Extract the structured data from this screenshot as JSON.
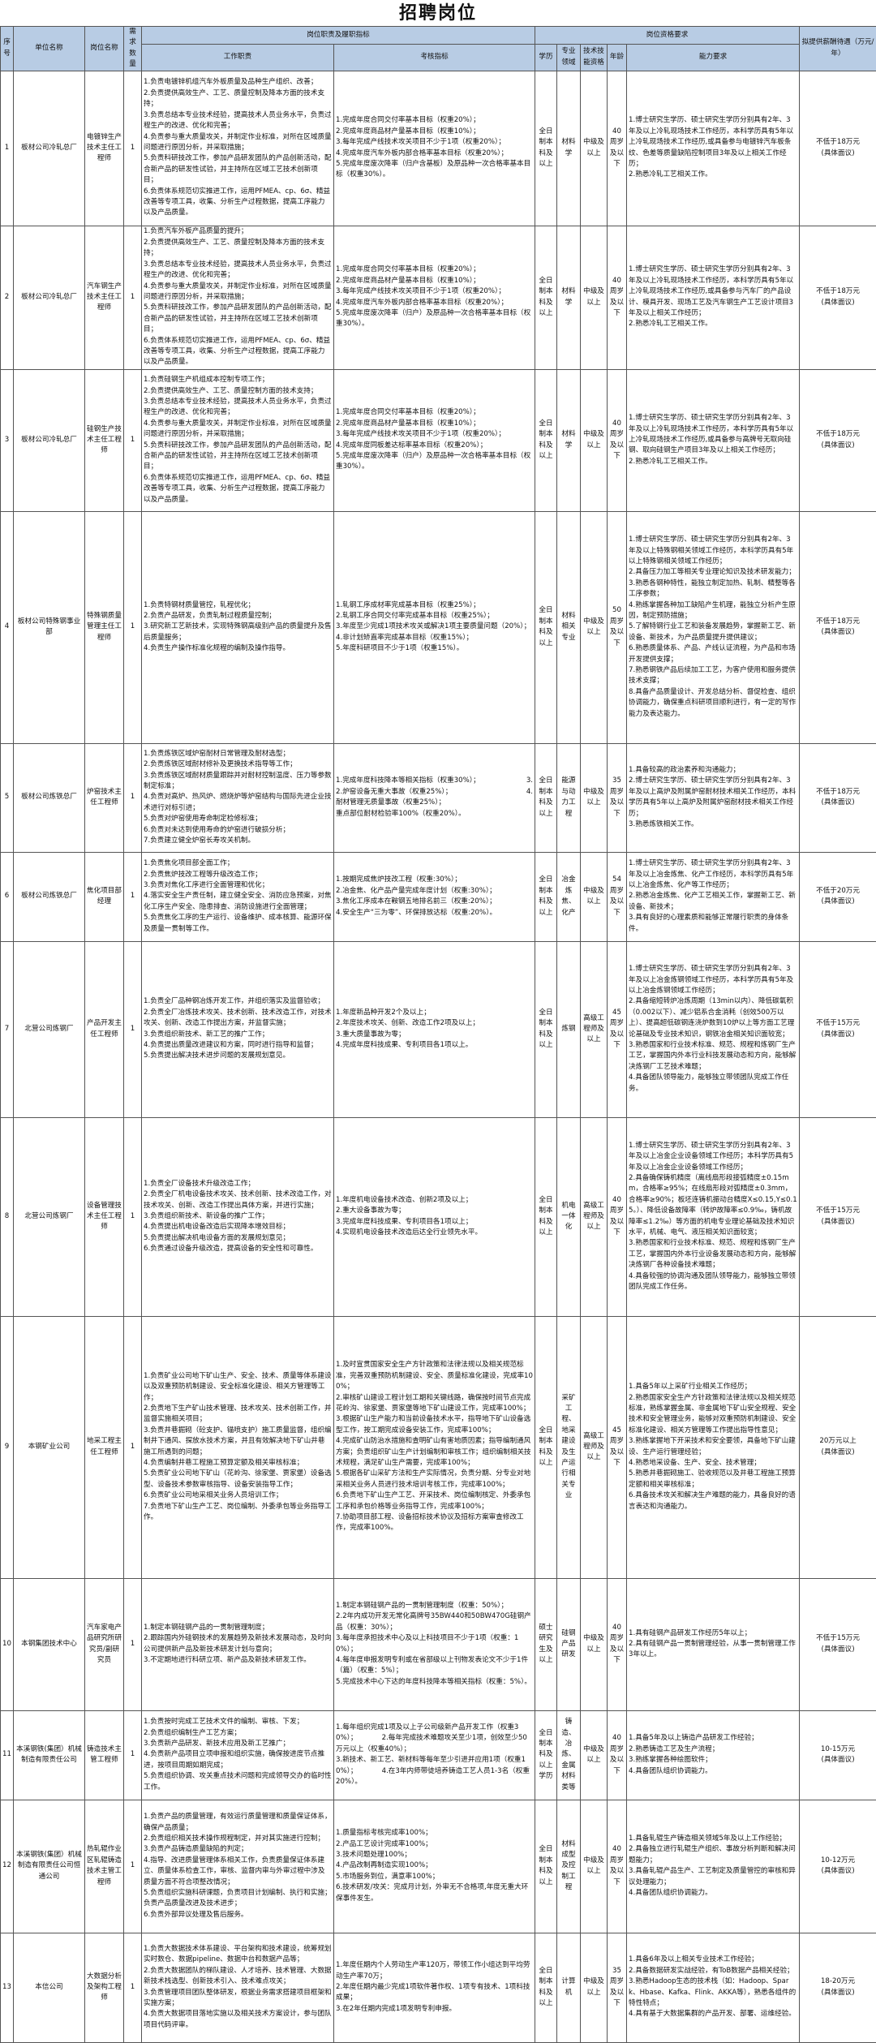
{
  "title": "招聘岗位",
  "header": {
    "seq": "序号",
    "unit": "单位名称",
    "position": "岗位名称",
    "count": "需求数量",
    "duties_group": "岗位职责及履职指标",
    "duties": "工作职责",
    "indicators": "考核指标",
    "qual_group": "岗位资格要求",
    "education": "学历",
    "major": "专业领域",
    "skill": "技术技能资格",
    "age": "年龄",
    "ability": "能力要求",
    "salary": "拟提供薪酬待遇（万元/年）"
  },
  "colors": {
    "header_bg": "#b8cce4",
    "border": "#555555"
  },
  "rows": [
    {
      "seq": "1",
      "unit": "板材公司冷轧总厂",
      "position": "电镀锌生产技术主任工程师",
      "count": "1",
      "duties": "1.负责电镀锌机组汽车外板质量及品种生产组织、改善；\n2.负责提供高效生产、工艺、质量控制及降本方面的技术支持；\n3.负责总结本专业技术经验，提高技术人员业务水平，负责过程生产的改进、优化和完善；\n4.负责参与重大质量攻关，并制定作业标准，对所在区域质量问题进行原因分析，并采取措施；\n5.负责科研技改工作，参加产品研发团队的产品创新活动，配合新产品的研发性试验，并主持所在区域工艺技术创新项目；\n6.负责体系规范切实推进工作，运用PFMEA、cp、6σ、精益改善等专项工具，收集、分析生产过程数据，提高工序能力以及产品质量。",
      "indicators": "1.完成年度合同交付率基本目标（权重20%）；\n2.完成年度商品材产量基本目标（权重10%）；\n3.每年完成产线技术攻关项目不少于1项（权重20%）；\n4.完成年度汽车外板内部合格率基本目标（权重20%）；\n5.完成年度废次降率（归户含基板）及原品种一次合格率基本目标（权重30%）。",
      "education": "全日制本科及以上",
      "major": "材料学",
      "skill": "中级及以上",
      "age": "40周岁及以下",
      "ability": "1.博士研究生学历、硕士研究生学历分别具有2年、3年及以上冷轧现场技术工作经历，本科学历具有5年以上冷轧现场技术工作经历,或具备参与电镀锌汽车板条纹、色差等质量缺陷控制项目3年及以上相关工作经历；\n2.熟悉冷轧工艺相关工作。",
      "salary": "不低于18万元\n(具体面议)"
    },
    {
      "seq": "2",
      "unit": "板材公司冷轧总厂",
      "position": "汽车钢生产技术主任工程师",
      "count": "1",
      "duties": "1.负责汽车外板产品质量的提升；\n2.负责提供高效生产、工艺、质量控制及降本方面的技术支持；\n3.负责总结本专业技术经验，提高技术人员业务水平，负责过程生产的改进、优化和完善；\n4.负责参与重大质量攻关，并制定作业标准，对所在区域质量问题进行原因分析，并采取措施；\n5.负责科研技改工作，参加产品研发团队的产品创新活动，配合新产品的研发性试验，并主持所在区域工艺技术创新项目；\n6.负责体系规范切实推进工作，运用PFMEA、cp、6σ、精益改善等专项工具，收集、分析生产过程数据，提高工序能力以及产品质量。",
      "indicators": "1.完成年度合同交付率基本目标（权重20%）；\n2.完成年度商品材产量基本目标（权重10%）；\n3.每年完成产线技术攻关项目不少于1项（权重20%）；\n4.完成年度汽车外板内部合格率基本目标（权重20%）；\n5.完成年度废次降率（归户）及原品种一次合格率基本目标（权重30%）。",
      "education": "全日制本科及以上",
      "major": "材料学",
      "skill": "中级及以上",
      "age": "40周岁及以下",
      "ability": "1.博士研究生学历、硕士研究生学历分别具有2年、3年及以上冷轧现场技术工作经历，本科学历具有5年以上冷轧现场技术工作经历,或具备参与汽车厂的产品设计、模具开发、现场工艺及汽车钢生产工艺设计项目3年及以上相关工作经历；\n2.熟悉冷轧工艺相关工作。",
      "salary": "不低于18万元\n(具体面议)"
    },
    {
      "seq": "3",
      "unit": "板材公司冷轧总厂",
      "position": "硅钢生产技术主任工程师",
      "count": "1",
      "duties": "1.负责硅钢生产机组成本控制专项工作；\n2.负责提供高效生产、工艺、质量控制方面的技术支持；\n3.负责总结本专业技术经验，提高技术人员业务水平，负责过程生产的改进、优化和完善；\n4.负责参与重大质量攻关，并制定作业标准，对所在区域质量问题进行原因分析，并采取措施；\n5.负责科研技改工作，参加产品研发团队的产品创新活动，配合新产品的研发性试验，并主持所在区域工艺技术创新项目；\n6.负责体系规范切实推进工作，运用PFMEA、cp、6σ、精益改善等专项工具，收集、分析生产过程数据，提高工序能力以及产品质量。",
      "indicators": "1.完成年度合同交付率基本目标（权重20%）；\n2.完成年度商品材产量基本目标（权重10%）；\n3.每年完成产线技术攻关项目不少于1项（权重20%）；\n4.完成年度同板差达标率基本目标（权重20%）；\n5.完成年度废次降率（归户）及原品种一次合格率基本目标（权重30%）。",
      "education": "全日制本科及以上",
      "major": "材料学",
      "skill": "中级及以上",
      "age": "40周岁及以下",
      "ability": "1.博士研究生学历、硕士研究生学历分别具有2年、3年及以上冷轧现场技术工作经历，本科学历具有5年以上冷轧现场技术工作经历,或具备参与高牌号无取向硅钢、取向硅钢生产项目3年及以上相关工作经历；\n2.熟悉冷轧工艺相关工作。",
      "salary": "不低于18万元\n(具体面议)"
    },
    {
      "seq": "4",
      "unit": "板材公司特殊钢事业部",
      "position": "特殊钢质量管理主任工程师",
      "count": "1",
      "duties": "1.负责特钢材质量管控，轧程优化；\n2.负责产品研发，负责轧制过程质量控制；\n3.研究新工艺新技术，实现特殊钢高级别产品的质量提升及售后质量服务；\n4.负责生产操作标准化规程的编制及操作指导。",
      "indicators": "1.轧钢工序成材率完成基本目标（权重25%）；\n2.轧钢工序合同交付率完成基本目标（权重25%）；\n3.年度至少完成1项技术攻关或解决1项主要质量问题（20%）；\n4.非计划矫直率完成基本目标（权重15%）；\n5.年度科研项目不少于1项（权重15%）。",
      "education": "全日制本科及以上",
      "major": "材料相关专业",
      "skill": "中级及以上",
      "age": "50周岁及以下",
      "ability": "1.博士研究生学历、硕士研究生学历分别具有2年、3年及以上特殊钢相关领域工作经历，本科学历具有5年以上特殊钢相关领域工作经历；\n2.具备压力加工等相关专业理论知识及技术研发能力；\n3.熟悉各钢种特性，能独立制定加热、轧制、精整等各工序参数；\n4.熟练掌握各种加工缺陷产生机理，能独立分析产生原因，制定预防措施；\n5.了解特钢行业工艺和装备发展趋势，掌握新工艺、新设备、新技术，为产品质量提升提供建议；\n6.熟悉质量体系、产品、产线认证流程，为产品和市场开发提供支撑；\n7.熟悉钢铁产品后续加工工艺，为客户使用和服务提供技术支撑；\n8.具备产品质量设计、开发总结分析、督促检查、组织协调能力，确保重点科研项目顺利进行，有一定的写作能力及表达能力。",
      "salary": "不低于18万元\n(具体面议)"
    },
    {
      "seq": "5",
      "unit": "板材公司炼铁总厂",
      "position": "炉窑技术主任工程师",
      "count": "1",
      "duties": "1.负责炼铁区域炉窑耐材日常管理及耐材选型；\n2.负责炼铁区域耐材修补及更换技术指导等工作；\n3.负责炼铁区域耐材质量跟踪并对耐材控制温度、压力等参数制定标准；\n4.负责对高炉、热风炉、燃烧炉等炉窑结构与国际先进企业技术进行对标引进；\n5.负责对炉窑使用寿命制定检修标准；\n6.负责对未达到使用寿命的炉窑进行破损分析；\n7.负责建立健全炉窑长寿攻关机制。",
      "indicators": "1.完成年度科技降本等相关指标（权重30%）；\n2.炉窑设备无重大事故（权重25%）；\n耐材管理无质量事故（权重25%）；\n重点部位耐材检验率100%（权重20%）。",
      "indicators_stray": "3.\n4.",
      "education": "全日制本科及以上",
      "major": "能源与动力工程",
      "skill": "中级及以上",
      "age": "35周岁及以下",
      "ability": "1.具备较高的政治素养和沟通能力；\n2.博士研究生学历、硕士研究生学历分别具有2年、3年及以上高炉及附属炉窑耐材技术相关工作经历，本科学历具有5年以上高炉及附属炉窑耐材技术相关工作经历；\n3.熟悉炼铁相关工作。",
      "salary": "不低于18万元\n(具体面议)"
    },
    {
      "seq": "6",
      "unit": "板材公司炼铁总厂",
      "position": "焦化项目部经理",
      "count": "1",
      "duties": "1.负责焦化项目部全面工作；\n2.负责焦炉技改工程等升级改造工作；\n3.负责对焦化工序进行全面管理和优化；\n4.落实安全生产责任制，建立健全安全、消防应急预案，对焦化工序生产安全、隐患排查、消防设施进行全面管理；\n5.负责焦化工序的生产运行、设备维护、成本核算、能源环保及质量一贯制等工作。",
      "indicators": "1.按期完成焦炉技改工程（权重:30%）；\n2.冶金焦、化产品产量完成年度计划（权重:30%）；\n3.焦化工序成本在鞍钢五地排名前三（权重:20%）；\n4.安全生产“三为零”、环保排放达标（权重:20%）。",
      "education": "全日制本科及以上",
      "major": "冶金炼焦、化产",
      "skill": "中级及以上",
      "age": "54周岁及以下",
      "ability": "1.博士研究生学历、硕士研究生学历分别具有2年、3年及以上冶金炼焦、化产工作经历，本科学历具有5年以上冶金炼焦、化产等工作经历；\n2.熟悉冶金炼焦、化产工艺相关工作，掌握新工艺、新设备、新技术；\n3.具有良好的心理素质和能够正常履行职责的身体条件。",
      "salary": "不低于20万元\n(具体面议)"
    },
    {
      "seq": "7",
      "unit": "北营公司炼钢厂",
      "position": "产品开发主任工程师",
      "count": "1",
      "duties": "1.负责全厂品种钢冶炼开发工作，并组织落实及监督验收；\n2.负责全厂冶炼技术攻关、技术创新、技术改造工作，对技术攻关、创新、改造工作提出方案，并监督实施；\n3.负责组织新技术、新工艺的推广工作；\n4.负责提出质量改进建议和方案，同时进行指导和监督；\n5.负责提出解决技术进步问题的发展规划意见。",
      "indicators": "1.年度新品种开发2个及以上；\n2.年度技术攻关、创新、改造工作2项及以上；\n3.重大质量事故为零；\n4.完成年度科技成果、专利项目各1项以上。",
      "education": "全日制本科及以上",
      "major": "炼钢",
      "skill": "高级工程师及以上",
      "age": "45周岁及以下",
      "ability": "1.博士研究生学历、硕士研究生学历分别具有2年、3年及以上冶金炼钢领域工作经历，本科学历具有5年及以上冶金炼钢领域工作经历；\n2.具备缩短转炉冶炼周期（13min以内）、降低碳氧积（0.002以下）、减少铝系合金消耗（创效500万以上）、提高超低碳钢连浇炉数到10炉以上等方面工艺理论基础及专业技术知识，钢铁冶金相关知识面较宽；\n3.熟悉国家和行业技术标准、规范、规程和炼钢厂生产工艺，掌握国内外本行业科技发展动态和方向，能够解决炼钢厂工艺技术难题；\n4.具备团队领导能力，能够独立带领团队完成工作任务。",
      "salary": "不低于15万元\n(具体面议)"
    },
    {
      "seq": "8",
      "unit": "北营公司炼钢厂",
      "position": "设备管理技术主任工程师",
      "count": "1",
      "duties": "1.负责全厂设备技术升级改造工作；\n2.负责全厂机电设备技术攻关、技术创新、技术改造工作，对技术攻关、创新、改造工作提出具体方案，并进行实施；\n3.负责组织新技术、新设备的推广工作；\n4.负责提出机电设备改造后实现降本增效目标；\n5.负责提出解决机电设备方面的发展规划意见；\n6.负责通过设备升级改造，提高设备的安全性和可靠性。",
      "indicators": "1.年度机电设备技术改造、创新2项及以上；\n2.重大设备事故为零；\n3.完成年度科技成果、专利项目各1项以上；\n4.实现机电设备技术改造后达全行业领先水平。",
      "education": "全日制本科及以上",
      "major": "机电一体化",
      "skill": "高级工程师及以上",
      "age": "40周岁及以下",
      "ability": "1.博士研究生学历、硕士研究生学历分别具有2年、3年及以上冶金企业设备领域工作经历；本科学历具有5年及以上冶金企业设备领域工作经历；\n2.具备确保铸机精度（离线扇形段接弧精度±0.15mm，合格率≥95%；在线扇形段对弧精度±0.3mm，合格率≥90%；板坯连铸机振动台精度X≤0.15,Y≤0.15。）、降低设备故障率（转炉故障率≤0.9‰，铸机故障率≤1.2‰）等方面的机电专业理论基础及技术知识水平，机械、电气、液压相关知识面较宽；\n3.熟悉国家和行业技术标准、规范、规程和炼钢厂生产工艺，掌握国内外本行业设备发展动态和方向，能够解决炼钢厂各种设备技术难题；\n4.具备较强的协调沟通及团队领导能力，能够独立带领团队完成工作任务。",
      "salary": "不低于15万元\n(具体面议)"
    },
    {
      "seq": "9",
      "unit": "本钢矿业公司",
      "position": "地采工程主任工程师",
      "count": "1",
      "duties": "1.负责矿业公司地下矿山生产、安全、技术、质量等体系建设以及双重预防机制建设、安全标准化建设、相关方管理等工作；\n2.负责地下生产矿山技术管理、技术攻关、技术创新工作，并监督实施相关项目；\n3.负责井巷掘砌（砼支护、锚喷支护）施工质量监督，组织编制井下通风、探放水技术方案，并且有效解决地下矿山井巷施工所遇到的问题；\n4.负责编制井巷工程施工预算定额及相关审核标准；\n5.负责矿业公司地下矿山（花岭沟、徐家堡、贾家堡）设备选型、设备技术参数审核指导、设备安装指导工作；\n6.负责矿业公司地采相关业务人员培训工作；\n7.负责地下矿山生产工艺、岗位编制、外委承包等业务指导工作。",
      "indicators": "1.及时宣贯国家安全生产方针政策和法律法规以及相关规范标准，完善双重预防机制建设、安全、质量标准化建设，完成率100%；\n2.审核矿山建设工程计划工期和关键线路，确保按时间节点完成花岭沟、徐家堡、贾家堡等地下矿山建设工作，完成率100%；\n3.根据矿山生产能力和当前设备技术水平，指导地下矿山设备选型工作，按工期完成设备安装工作，完成率100%；\n4.完成矿山防治水措施和查明矿山有害地质因素；指导编制通风方案；负责组织矿山生产计划编制和审核工作；组织编制相关技术规程，满足矿山生产需要，完成率100%；\n5.根据各矿山采矿方法和生产实际情况，负责分期、分专业对地采相关业务人员进行技术培训考核工作，完成率100%；\n6.负责地下矿山生产工艺、开采技术、岗位编制核定、外委承包工序和承包价格等业务指导工作，完成率100%；\n7.协助项目部工程、设备招标技术协议及招标方案审查修改工作，完成率100%。",
      "education": "全日制本科及以上",
      "major": "采矿工程、地采建设及生产运行相关专业",
      "skill": "高级工程师及以上",
      "age": "45周岁及以下",
      "ability": "1.具备5年以上采矿行业相关工作经历；\n2.熟悉国家安全生产方针政策和法律法规以及相关规范标准，熟练掌握金属、非金属地下矿山安全规程、安全技术和安全管理业务，能够对双重预防机制建设、安全标准化建设、相关方管理等工作提出指导性意见；\n3.熟练掌握地下开采技术和安全要领，具备地下矿山建设、生产运行管理经验；\n4.熟悉地采设备、生产、安全、技术管理；\n5.熟悉井巷掘砌施工、验收规范以及井巷工程施工预算定额和相关审核标准；\n6.具备技术攻关和解决生产难题的能力，具备良好的语言表达和沟通能力。",
      "salary": "20万元以上\n(具体面议)"
    },
    {
      "seq": "10",
      "unit": "本钢集团技术中心",
      "position": "汽车家电产品研究所研究员/副研究员",
      "count": "1",
      "duties": "1.制定本钢硅钢产品的一贯制管理制度；\n2.跟踪国内外硅钢技术的发展趋势及新技术发展动态，及时向公司提供新产品及新技术研发计划与意向；\n3.不定期地进行科研立项、新产品及新技术研发工作。",
      "indicators": "1.制定本钢硅钢产品的一贯制管理制度（权重：50%）；\n2.2年内成功开发无常化高牌号35BW440和50BW470G硅钢产品（权重：30%）；\n3.每年度承担技术中心及以上科技项目不少于1项（权重：10%）；\n4.每年度申报发明专利或在省部级以上刊物发表论文不少于1件（篇）（权重：5%）；\n5.完成技术中心下达的年度科技降本等相关指标（权重：5%）。",
      "education": "硕士研究生及以上",
      "major": "硅钢产品研发",
      "skill": "中级及以上",
      "age": "40周岁及以下",
      "ability": "1.具有硅钢产品研发工作经历5年以上；\n2.具有硅钢产品一贯制管理经验，从事一贯制管理工作3年以上。",
      "salary": "不低于15万元\n(具体面议)"
    },
    {
      "seq": "11",
      "unit": "本溪钢铁(集团）机械制造有限责任公司",
      "position": "铸造技术主管工程师",
      "count": "1",
      "duties": "1.负责按时完成工艺技术文件的编制、审核、下发；\n2.负责组织编制生产工艺方案；\n3.负责新产品研发、新技术应用及新工艺推广；\n4.负责新产品项目立项申报和组织实施，确保按进度节点推进，按项目周期如期完成；\n5.负责组织协调、攻关重点技术问题和完成领导交办的临时性工作。",
      "indicators": "1.每年组织完成1项及以上子公司级新产品开发工作（权重30%）；　　　　2.每年完成技术难题攻关至少1项，创效至少50万元以上（权重40%）；\n3.新技术、新工艺、新材料等每年至少引进并应用1项（权重10%）；　　　　4.在3年内师带徒培养铸造工艺人员1-3名（权重20%）。",
      "education": "全日制本科及以上学历",
      "major": "铸造、冶炼、金属材料类等",
      "skill": "中级及以上",
      "age": "40周岁及以下",
      "ability": "1.具备5年及以上铸造产品研发工作经验；\n2.熟悉铸造工艺及生产流程；\n3.熟练掌握各种绘图软件；\n4.具备团队组织协调能力。",
      "salary": "10-15万元\n(具体面议)"
    },
    {
      "seq": "12",
      "unit": "本溪钢铁(集团）机械制造有限责任公司恒通公司",
      "position": "热轧辊作业区轧辊铸造技术主管工程师",
      "count": "1",
      "duties": "1.负责产品的质量管理，有效运行质量管理和质量保证体系，确保产品质量；\n2.负责组织相关技术操作规程制定，并对其实施进行控制；\n3.负责产品铸造质量缺陷的判定；\n4.指导、改进质量管理体系相关工作，负责质量保证体系建立、质量体系检查工作，审核、监督内审与外审过程中涉及质量方面不符合项整改情况；\n5.负责组织实施科研课题，负责项目计划编制、执行和实施；负责产品质量改进及技术进步；\n6.负责外部异议处理及售后服务。",
      "indicators": "1.质量指标考核完成率100%；\n2.产品工艺设计完成率100%；\n3.技术问题处理100%；\n4.产品改制再制造实现100%；\n5.市场服务到位，满意率100%；\n6.技术研发/攻关：完成月计划，外审无不合格项,年度无重大环保事件发生。",
      "education": "全日制本科及以上",
      "major": "材料成型及控制工程",
      "skill": "中级及以上",
      "age": "40周岁及以下",
      "ability": "1.具备轧辊生产铸造相关领域5年及以上工作经验；\n2.具备独立进行轧辊生产组织、事故分析判断和解决问题能力；\n3.具备轧辊产品生产、工艺制定及质量管控的审核和异议处理能力；\n4.具备团队组织协调能力。",
      "salary": "10-12万元\n(具体面议)"
    },
    {
      "seq": "13",
      "unit": "本信公司",
      "position": "大数据分析及架构工程师",
      "count": "1",
      "duties": "1.负责大数据技术体系建设、平台架构和技术建设，统筹规划实时数仓、数据pipeline、数据中台和数据产品等；\n2.负责大数据团队的梯队建设、人才培养、技术管理、大数据新技术栈选型、创新技术引入、技术难点攻关；\n3.负责管理项目团队整体研发，根据业务需求搭建项目框架和实施方案；\n4.负责大数据项目落地实施以及相关技术方案设计，参与团队项目代码评审。",
      "indicators": "1.年度任期内个人劳动生产率120万，带领工作小组达到平均劳动生产率70万；\n2.年度任期内最少完成1项软件著作权、1项专有技术、1项科技成果；\n3.在2年任期内完成1项发明专利申报。",
      "education": "全日制本科及以上",
      "major": "计算机",
      "skill": "中级及以上",
      "age": "35周岁及以下",
      "ability": "1.具备6年及以上相关专业技术工作经验；\n2.具备数据研发实战经验，有ToB数据产品相关经验；\n3.熟悉Hadoop生态的技术栈（如：Hadoop、Spark、Hbase、Kafka、Flink、AKKA等），熟悉各组件的特性特点；\n4.具有基于大数据集群的产品开发、部署、运维经验。",
      "salary": "18-20万元\n(具体面议)"
    }
  ]
}
